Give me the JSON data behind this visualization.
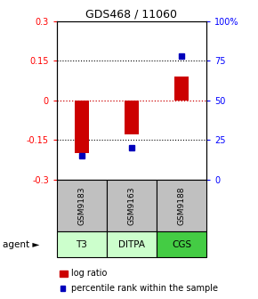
{
  "title": "GDS468 / 11060",
  "samples": [
    "GSM9183",
    "GSM9163",
    "GSM9188"
  ],
  "agents": [
    "T3",
    "DITPA",
    "CGS"
  ],
  "log_ratios": [
    -0.2,
    -0.13,
    0.09
  ],
  "percentile_ranks": [
    15,
    20,
    78
  ],
  "ylim_left": [
    -0.3,
    0.3
  ],
  "ylim_right": [
    0,
    100
  ],
  "yticks_left": [
    -0.3,
    -0.15,
    0,
    0.15,
    0.3
  ],
  "yticks_right": [
    0,
    25,
    50,
    75,
    100
  ],
  "ytick_labels_left": [
    "-0.3",
    "-0.15",
    "0",
    "0.15",
    "0.3"
  ],
  "ytick_labels_right": [
    "0",
    "25",
    "50",
    "75",
    "100%"
  ],
  "bar_color": "#cc0000",
  "dot_color": "#0000bb",
  "sample_bg": "#c0c0c0",
  "agent_bg_light": "#ccffcc",
  "agent_bg_cgs": "#44cc44",
  "zero_line_color": "#cc0000",
  "legend_red": "#cc0000",
  "legend_blue": "#0000bb",
  "bar_width": 0.28
}
